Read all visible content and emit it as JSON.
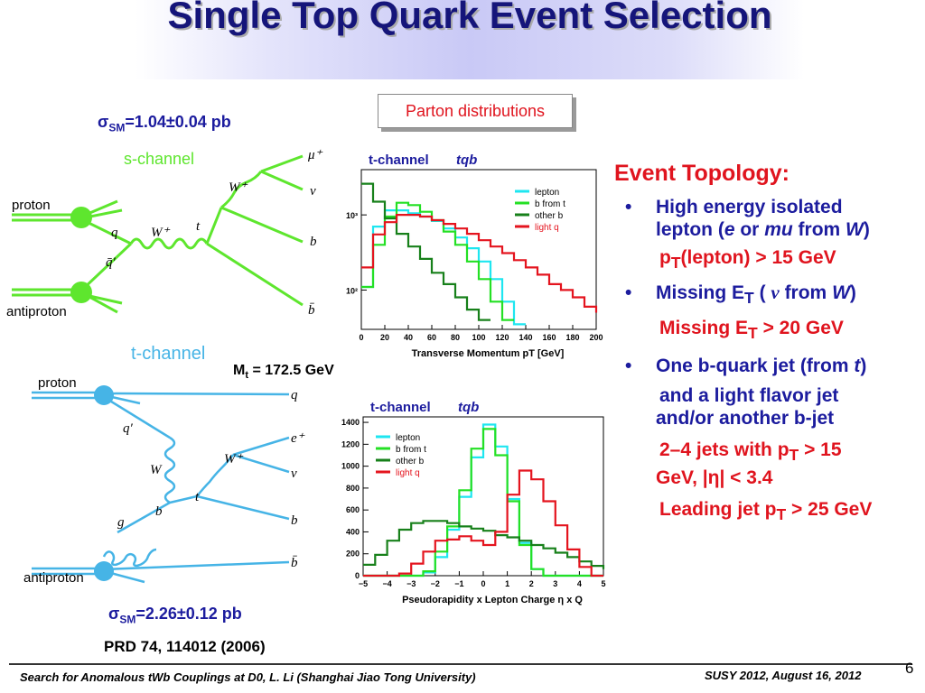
{
  "title": "Single Top Quark Event Selection",
  "parton_box": "Parton distributions",
  "schannel": {
    "sigma_prefix": "σ",
    "sigma_sub": "SM",
    "sigma_value": "=1.04±0.04 pb",
    "label": "s-channel",
    "particles": [
      "proton",
      "antiproton",
      "q",
      "q̄′",
      "W⁺",
      "t",
      "W⁺",
      "μ⁺",
      "ν",
      "b",
      "b̄"
    ]
  },
  "tchannel": {
    "label": "t-channel",
    "mt_prefix": "M",
    "mt_sub": "t",
    "mt_value": " = 172.5 GeV",
    "sigma_prefix": "σ",
    "sigma_sub": "SM",
    "sigma_value": "=2.26±0.12 pb",
    "particles": [
      "proton",
      "antiproton",
      "q",
      "q′",
      "W",
      "b",
      "g",
      "t",
      "W⁺",
      "e⁺",
      "ν",
      "b",
      "b̄"
    ]
  },
  "reference": "PRD 74, 114012 (2006)",
  "topology": {
    "heading": "Event Topology:",
    "b1_line1": "High energy isolated",
    "b1_line2a": "lepton (",
    "b1_e": "e",
    "b1_or": " or ",
    "b1_mu": "mu",
    "b1_from": " from ",
    "b1_W": "W",
    "b1_close": ")",
    "c1_pre": "p",
    "c1_sub": "T",
    "c1_post": "(lepton) > 15 GeV",
    "b2_pre": "Missing E",
    "b2_sub": "T",
    "b2_mid": " ( ",
    "b2_nu": "ν",
    "b2_from": "  from ",
    "b2_W": "W",
    "b2_close": ")",
    "c2_pre": "Missing E",
    "c2_sub": "T",
    "c2_post": " > 20 GeV",
    "b3_pre": "One b-quark jet (from ",
    "b3_t": "t",
    "b3_close": ")",
    "b3_cont1": "and a light flavor jet",
    "b3_cont2": "and/or another b-jet",
    "c3a_pre": "2–4 jets with p",
    "c3a_sub": "T",
    "c3a_post": " > 15",
    "c3b": "GeV,   |η| < 3.4",
    "c4_pre": "Leading jet p",
    "c4_sub": "T",
    "c4_post": " > 25 GeV"
  },
  "footer": {
    "left": "Search for Anomalous  tWb Couplings at D0, L. Li (Shanghai Jiao Tong University)",
    "right": "SUSY 2012, August 16, 2012",
    "page": "6"
  },
  "colors": {
    "title": "#15157a",
    "lepton": "#1ee6f0",
    "b_from_t": "#24e024",
    "other_b": "#17801a",
    "light_q": "#e4141e",
    "s_diagram": "#5ee62e",
    "t_diagram": "#46b4e6"
  },
  "chart_data": [
    {
      "type": "line",
      "title": "t-channel   tqb",
      "xlabel": "Transverse Momentum   pT   [GeV]",
      "ylabel": "",
      "xlim": [
        0,
        200
      ],
      "log_y": true,
      "ylim": [
        30,
        4000
      ],
      "x_ticks": [
        "0",
        "20",
        "40",
        "60",
        "80",
        "100",
        "120",
        "140",
        "160",
        "180",
        "200"
      ],
      "y_ticks": [
        "10³",
        "10²"
      ],
      "y_tick_values": [
        1000,
        100
      ],
      "x": [
        0,
        10,
        20,
        30,
        40,
        50,
        60,
        70,
        80,
        90,
        100,
        110,
        120,
        130,
        140,
        150,
        160,
        170,
        180,
        190,
        200
      ],
      "series": [
        {
          "name": "lepton",
          "color": "#1ee6f0",
          "values": [
            110,
            700,
            1150,
            1150,
            1050,
            950,
            830,
            660,
            500,
            360,
            240,
            140,
            70,
            35,
            null,
            null,
            null,
            null,
            null,
            null,
            null
          ]
        },
        {
          "name": "b from t",
          "color": "#24e024",
          "values": [
            110,
            400,
            950,
            1450,
            1350,
            1100,
            850,
            600,
            400,
            240,
            140,
            70,
            40,
            null,
            null,
            null,
            null,
            null,
            null,
            null,
            null
          ]
        },
        {
          "name": "other b",
          "color": "#17801a",
          "values": [
            2600,
            1500,
            900,
            560,
            380,
            260,
            170,
            120,
            80,
            55,
            40,
            null,
            null,
            null,
            null,
            null,
            null,
            null,
            null,
            null,
            null
          ]
        },
        {
          "name": "light q",
          "color": "#e4141e",
          "values": [
            200,
            550,
            800,
            1000,
            1000,
            950,
            850,
            760,
            660,
            560,
            460,
            380,
            310,
            250,
            200,
            160,
            120,
            100,
            80,
            60,
            50
          ]
        }
      ]
    },
    {
      "type": "line",
      "title": "t-channel   tqb",
      "xlabel": "Pseudorapidity x Lepton Charge   η x Q",
      "ylabel": "",
      "xlim": [
        -5,
        5
      ],
      "ylim": [
        0,
        1450
      ],
      "x_ticks": [
        "−5",
        "−4",
        "−3",
        "−2",
        "−1",
        "0",
        "1",
        "2",
        "3",
        "4",
        "5"
      ],
      "y_ticks": [
        "0",
        "200",
        "400",
        "600",
        "800",
        "1000",
        "1200",
        "1400"
      ],
      "x": [
        -5,
        -4.5,
        -4,
        -3.5,
        -3,
        -2.5,
        -2,
        -1.5,
        -1,
        -0.5,
        0,
        0.5,
        1,
        1.5,
        2,
        2.5,
        3,
        3.5,
        4,
        4.5,
        5
      ],
      "series": [
        {
          "name": "lepton",
          "color": "#1ee6f0",
          "values": [
            0,
            0,
            0,
            0,
            0,
            30,
            170,
            420,
            720,
            1080,
            1380,
            1180,
            700,
            300,
            60,
            0,
            0,
            0,
            0,
            0,
            0
          ]
        },
        {
          "name": "b from t",
          "color": "#24e024",
          "values": [
            0,
            0,
            0,
            0,
            0,
            40,
            220,
            450,
            780,
            1160,
            1340,
            1100,
            680,
            280,
            60,
            0,
            0,
            0,
            0,
            0,
            0
          ]
        },
        {
          "name": "other b",
          "color": "#17801a",
          "values": [
            100,
            190,
            320,
            420,
            480,
            500,
            500,
            480,
            450,
            430,
            410,
            370,
            350,
            320,
            280,
            250,
            210,
            170,
            130,
            90,
            60
          ]
        },
        {
          "name": "light q",
          "color": "#e4141e",
          "values": [
            0,
            0,
            0,
            20,
            110,
            220,
            320,
            330,
            360,
            320,
            280,
            400,
            740,
            960,
            880,
            680,
            460,
            240,
            80,
            0,
            0
          ]
        }
      ]
    }
  ]
}
